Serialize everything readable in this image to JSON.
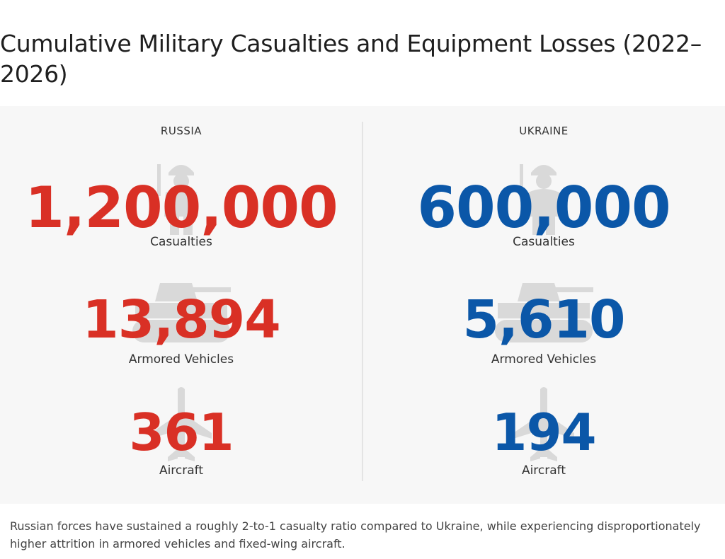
{
  "title": "Cumulative Military Casualties and Equipment Losses (2022–2026)",
  "footnote": "Russian forces have sustained a roughly 2-to-1 casualty ratio compared to Ukraine, while experiencing disproportionately higher attrition in armored vehicles and fixed-wing aircraft.",
  "colors": {
    "russia": "#d93025",
    "ukraine": "#0b57a8",
    "icon": "#d9d9d9"
  },
  "icons": {
    "casualties": "soldier-icon",
    "armored": "tank-icon",
    "aircraft": "airplane-icon"
  },
  "chart_data": {
    "type": "table",
    "title": "Cumulative Military Casualties and Equipment Losses (2022–2026)",
    "columns": [
      "RUSSIA",
      "UKRAINE"
    ],
    "metrics": [
      "Casualties",
      "Armored Vehicles",
      "Aircraft"
    ],
    "series": [
      {
        "name": "RUSSIA",
        "values": [
          1200000,
          13894,
          361
        ],
        "display": [
          "1,200,000",
          "13,894",
          "361"
        ]
      },
      {
        "name": "UKRAINE",
        "values": [
          600000,
          5610,
          194
        ],
        "display": [
          "600,000",
          "5,610",
          "194"
        ]
      }
    ]
  }
}
